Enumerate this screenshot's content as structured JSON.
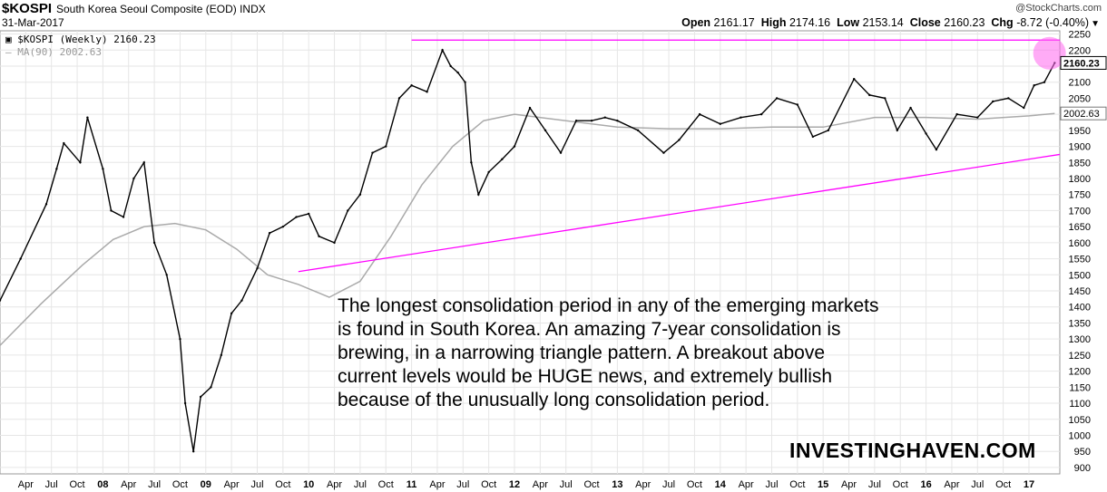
{
  "header": {
    "symbol": "$KOSPI",
    "description": "South Korea Seoul Composite (EOD)  INDX",
    "date": "31-Mar-2017",
    "brand": "@StockCharts.com",
    "open_label": "Open",
    "open_value": "2161.17",
    "high_label": "High",
    "high_value": "2174.16",
    "low_label": "Low",
    "low_value": "2153.14",
    "close_label": "Close",
    "close_value": "2160.23",
    "chg_label": "Chg",
    "chg_value": "-8.72 (-0.40%)"
  },
  "legend": {
    "price": "$KOSPI (Weekly) 2160.23",
    "ma": "MA(90) 2002.63"
  },
  "annotation": "The longest consolidation period in any of the emerging markets is found in South Korea. An amazing 7-year consolidation is brewing, in a narrowing triangle pattern. A breakout above current levels would be HUGE news, and extremely bullish because of the unusually long consolidation period.",
  "watermark": "INVESTINGHAVEN.COM",
  "colors": {
    "price": "#000000",
    "ma": "#aaaaaa",
    "trendline": "#ff00ff",
    "highlight": "#ff66ee",
    "grid": "#e6e6e6"
  },
  "chart_data": {
    "type": "line",
    "title": "South Korea Seoul Composite (EOD)",
    "series": [
      {
        "name": "$KOSPI (Weekly)",
        "x": [
          2007.0,
          2007.2,
          2007.45,
          2007.55,
          2007.62,
          2007.78,
          2007.85,
          2008.0,
          2008.08,
          2008.2,
          2008.3,
          2008.4,
          2008.5,
          2008.62,
          2008.75,
          2008.8,
          2008.88,
          2008.95,
          2009.05,
          2009.15,
          2009.25,
          2009.35,
          2009.5,
          2009.62,
          2009.75,
          2009.88,
          2010.0,
          2010.1,
          2010.25,
          2010.38,
          2010.5,
          2010.62,
          2010.75,
          2010.88,
          2011.0,
          2011.15,
          2011.3,
          2011.38,
          2011.45,
          2011.52,
          2011.58,
          2011.65,
          2011.75,
          2011.88,
          2012.0,
          2012.15,
          2012.3,
          2012.45,
          2012.6,
          2012.75,
          2012.88,
          2013.0,
          2013.2,
          2013.45,
          2013.6,
          2013.8,
          2014.0,
          2014.2,
          2014.4,
          2014.55,
          2014.75,
          2014.9,
          2015.05,
          2015.3,
          2015.45,
          2015.6,
          2015.72,
          2015.85,
          2016.0,
          2016.1,
          2016.3,
          2016.5,
          2016.65,
          2016.8,
          2016.95,
          2017.05,
          2017.15,
          2017.25
        ],
        "y": [
          1420,
          1550,
          1720,
          1830,
          1910,
          1850,
          1990,
          1830,
          1700,
          1680,
          1800,
          1850,
          1600,
          1500,
          1300,
          1100,
          950,
          1120,
          1150,
          1250,
          1380,
          1420,
          1520,
          1630,
          1650,
          1680,
          1690,
          1620,
          1600,
          1700,
          1750,
          1880,
          1900,
          2050,
          2090,
          2070,
          2200,
          2150,
          2130,
          2100,
          1850,
          1750,
          1820,
          1860,
          1900,
          2020,
          1950,
          1880,
          1980,
          1980,
          1990,
          1980,
          1950,
          1880,
          1920,
          2000,
          1970,
          1990,
          2000,
          2050,
          2030,
          1930,
          1950,
          2110,
          2060,
          2050,
          1950,
          2020,
          1940,
          1890,
          2000,
          1990,
          2040,
          2050,
          2020,
          2090,
          2100,
          2160
        ]
      },
      {
        "name": "MA(90)",
        "x": [
          2007.0,
          2007.4,
          2007.8,
          2008.1,
          2008.4,
          2008.7,
          2009.0,
          2009.3,
          2009.6,
          2009.9,
          2010.2,
          2010.5,
          2010.8,
          2011.1,
          2011.4,
          2011.7,
          2012.0,
          2012.5,
          2013.0,
          2013.5,
          2014.0,
          2014.5,
          2015.0,
          2015.5,
          2016.0,
          2016.5,
          2017.0,
          2017.25
        ],
        "y": [
          1280,
          1410,
          1530,
          1610,
          1650,
          1660,
          1640,
          1580,
          1500,
          1470,
          1430,
          1480,
          1620,
          1780,
          1900,
          1980,
          2000,
          1980,
          1960,
          1955,
          1955,
          1960,
          1960,
          1990,
          1990,
          1985,
          1995,
          2002.63
        ]
      }
    ],
    "trendlines": [
      {
        "x": [
          2011.0,
          2017.3
        ],
        "y": [
          2231,
          2231
        ]
      },
      {
        "x": [
          2009.9,
          2017.3
        ],
        "y": [
          1510,
          1875
        ]
      }
    ],
    "highlight": {
      "x": 2017.2,
      "y": 2190
    },
    "ylim": [
      880,
      2260
    ],
    "yticks": [
      900,
      950,
      1000,
      1050,
      1100,
      1150,
      1200,
      1250,
      1300,
      1350,
      1400,
      1450,
      1500,
      1550,
      1600,
      1650,
      1700,
      1750,
      1800,
      1850,
      1900,
      1950,
      2000,
      2050,
      2100,
      2150,
      2200,
      2250
    ],
    "last_value_labels": [
      "2160.23",
      "2002.63"
    ],
    "xticks": [
      {
        "label": "Apr",
        "x": 2007.25
      },
      {
        "label": "Jul",
        "x": 2007.5
      },
      {
        "label": "Oct",
        "x": 2007.75
      },
      {
        "label": "08",
        "x": 2008.0,
        "bold": true
      },
      {
        "label": "Apr",
        "x": 2008.25
      },
      {
        "label": "Jul",
        "x": 2008.5
      },
      {
        "label": "Oct",
        "x": 2008.75
      },
      {
        "label": "09",
        "x": 2009.0,
        "bold": true
      },
      {
        "label": "Apr",
        "x": 2009.25
      },
      {
        "label": "Jul",
        "x": 2009.5
      },
      {
        "label": "Oct",
        "x": 2009.75
      },
      {
        "label": "10",
        "x": 2010.0,
        "bold": true
      },
      {
        "label": "Apr",
        "x": 2010.25
      },
      {
        "label": "Jul",
        "x": 2010.5
      },
      {
        "label": "Oct",
        "x": 2010.75
      },
      {
        "label": "11",
        "x": 2011.0,
        "bold": true
      },
      {
        "label": "Apr",
        "x": 2011.25
      },
      {
        "label": "Jul",
        "x": 2011.5
      },
      {
        "label": "Oct",
        "x": 2011.75
      },
      {
        "label": "12",
        "x": 2012.0,
        "bold": true
      },
      {
        "label": "Apr",
        "x": 2012.25
      },
      {
        "label": "Jul",
        "x": 2012.5
      },
      {
        "label": "Oct",
        "x": 2012.75
      },
      {
        "label": "13",
        "x": 2013.0,
        "bold": true
      },
      {
        "label": "Apr",
        "x": 2013.25
      },
      {
        "label": "Jul",
        "x": 2013.5
      },
      {
        "label": "Oct",
        "x": 2013.75
      },
      {
        "label": "14",
        "x": 2014.0,
        "bold": true
      },
      {
        "label": "Apr",
        "x": 2014.25
      },
      {
        "label": "Jul",
        "x": 2014.5
      },
      {
        "label": "Oct",
        "x": 2014.75
      },
      {
        "label": "15",
        "x": 2015.0,
        "bold": true
      },
      {
        "label": "Apr",
        "x": 2015.25
      },
      {
        "label": "Jul",
        "x": 2015.5
      },
      {
        "label": "Oct",
        "x": 2015.75
      },
      {
        "label": "16",
        "x": 2016.0,
        "bold": true
      },
      {
        "label": "Apr",
        "x": 2016.25
      },
      {
        "label": "Jul",
        "x": 2016.5
      },
      {
        "label": "Oct",
        "x": 2016.75
      },
      {
        "label": "17",
        "x": 2017.0,
        "bold": true
      }
    ],
    "xlim": [
      2007.0,
      2017.3
    ],
    "grid": true,
    "legend_position": "top-left"
  }
}
